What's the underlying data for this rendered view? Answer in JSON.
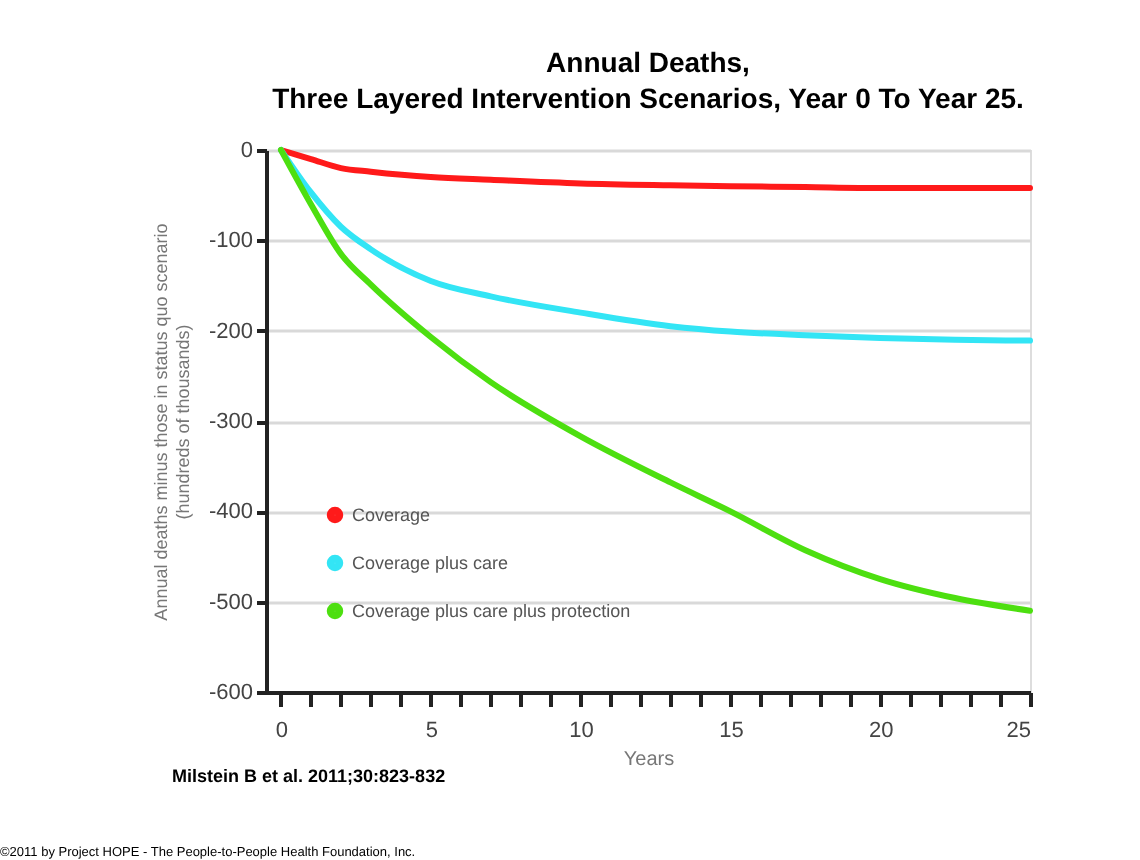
{
  "chart_data": {
    "type": "line",
    "title": "Annual Deaths,\nThree Layered Intervention Scenarios, Year 0 To Year 25.",
    "xlabel": "Years",
    "ylabel": "Annual deaths minus those in status quo scenario\n(hundreds of thousands)",
    "x": [
      0,
      1,
      2,
      3,
      5,
      7,
      10,
      13,
      15,
      17.5,
      20,
      22.5,
      25
    ],
    "series": [
      {
        "name": "Coverage",
        "color": "#ff1a1a",
        "values": [
          0,
          -10,
          -20,
          -24,
          -30,
          -33,
          -37,
          -39,
          -40,
          -41,
          -42,
          -42,
          -42
        ]
      },
      {
        "name": "Coverage plus care",
        "color": "#33e5f5",
        "values": [
          0,
          -47,
          -85,
          -110,
          -145,
          -162,
          -180,
          -195,
          -201,
          -205,
          -208,
          -210,
          -211
        ]
      },
      {
        "name": "Coverage plus care plus protection",
        "color": "#4ddf10",
        "values": [
          0,
          -60,
          -115,
          -149,
          -207,
          -257,
          -317,
          -368,
          -400,
          -443,
          -475,
          -496,
          -510
        ]
      }
    ],
    "xlim": [
      -0.5,
      25
    ],
    "xticks": [
      0,
      {
        "value": 1,
        "label": null
      },
      {
        "value": 2,
        "label": null
      },
      {
        "value": 3,
        "label": null
      },
      {
        "value": 4,
        "label": null
      },
      5,
      {
        "value": 6,
        "label": null
      },
      {
        "value": 7,
        "label": null
      },
      {
        "value": 8,
        "label": null
      },
      {
        "value": 9,
        "label": null
      },
      10,
      {
        "value": 11,
        "label": null
      },
      {
        "value": 12,
        "label": null
      },
      {
        "value": 13,
        "label": null
      },
      {
        "value": 14,
        "label": null
      },
      15,
      {
        "value": 16,
        "label": null
      },
      {
        "value": 17,
        "label": null
      },
      {
        "value": 18,
        "label": null
      },
      {
        "value": 19,
        "label": null
      },
      20,
      {
        "value": 21,
        "label": null
      },
      {
        "value": 22,
        "label": null
      },
      {
        "value": 23,
        "label": null
      },
      {
        "value": 24,
        "label": null
      },
      25
    ],
    "ylim": [
      -600,
      0
    ],
    "yticks": [
      -600,
      -500,
      -400,
      -300,
      -200,
      -100,
      0
    ],
    "grid": "y",
    "legend": "bottom left",
    "marker": "none",
    "line_style": "solid",
    "annotations": [
      "Milstein B et al. 2011;30:823-832",
      "©2011 by Project HOPE - The People-to-People Health Foundation, Inc."
    ]
  }
}
